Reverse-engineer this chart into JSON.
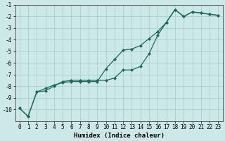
{
  "xlabel": "Humidex (Indice chaleur)",
  "ylabel": "",
  "bg_color": "#cce8e8",
  "grid_color": "#aacfcf",
  "line_color": "#1a6b5a",
  "line1_x": [
    0,
    1,
    2,
    3,
    4,
    5,
    6,
    7,
    8,
    9,
    10,
    11,
    12,
    13,
    14,
    15,
    16,
    17,
    18,
    19,
    20,
    21,
    22,
    23
  ],
  "line1_y": [
    -9.9,
    -10.6,
    -8.5,
    -8.4,
    -8.0,
    -7.6,
    -7.5,
    -7.5,
    -7.5,
    -7.5,
    -7.5,
    -7.3,
    -6.6,
    -6.6,
    -6.3,
    -5.2,
    -3.6,
    -2.5,
    -1.4,
    -2.0,
    -1.6,
    -1.7,
    -1.8,
    -1.9
  ],
  "line2_x": [
    0,
    1,
    2,
    3,
    4,
    5,
    6,
    7,
    8,
    9,
    10,
    11,
    12,
    13,
    14,
    15,
    16,
    17,
    18,
    19,
    20,
    21,
    22,
    23
  ],
  "line2_y": [
    -9.9,
    -10.6,
    -8.5,
    -8.2,
    -7.9,
    -7.7,
    -7.6,
    -7.6,
    -7.6,
    -7.6,
    -6.5,
    -5.7,
    -4.9,
    -4.8,
    -4.5,
    -3.9,
    -3.3,
    -2.5,
    -1.4,
    -2.0,
    -1.6,
    -1.7,
    -1.8,
    -1.9
  ],
  "ylim": [
    -11,
    -1
  ],
  "xlim": [
    -0.5,
    23.5
  ],
  "yticks": [
    -10,
    -9,
    -8,
    -7,
    -6,
    -5,
    -4,
    -3,
    -2,
    -1
  ],
  "xticks": [
    0,
    1,
    2,
    3,
    4,
    5,
    6,
    7,
    8,
    9,
    10,
    11,
    12,
    13,
    14,
    15,
    16,
    17,
    18,
    19,
    20,
    21,
    22,
    23
  ],
  "tick_fontsize": 5.5,
  "xlabel_fontsize": 6.5,
  "marker_size": 2.5,
  "linewidth": 0.9
}
